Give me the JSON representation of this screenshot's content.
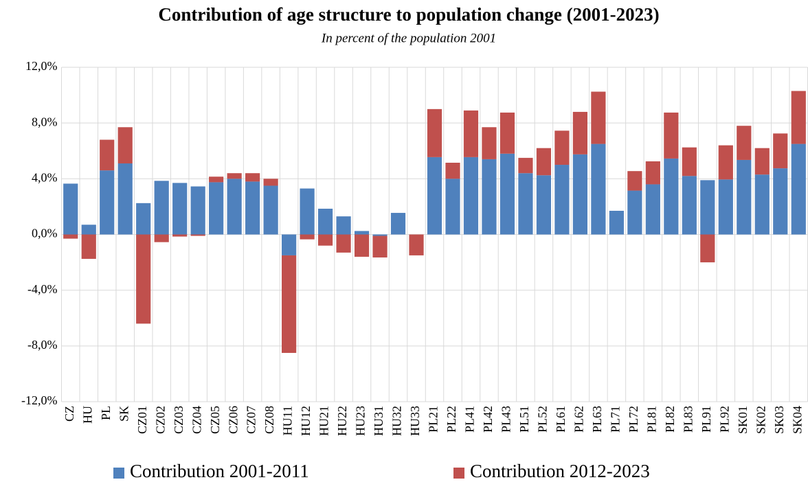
{
  "chart_data": {
    "type": "stacked-bar",
    "title": "Contribution of age structure to population change (2001-2023)",
    "subtitle": "In percent of the population 2001",
    "categories": [
      "CZ",
      "HU",
      "PL",
      "SK",
      "CZ01",
      "CZ02",
      "CZ03",
      "CZ04",
      "CZ05",
      "CZ06",
      "CZ07",
      "CZ08",
      "HU11",
      "HU12",
      "HU21",
      "HU22",
      "HU23",
      "HU31",
      "HU32",
      "HU33",
      "PL21",
      "PL22",
      "PL41",
      "PL42",
      "PL43",
      "PL51",
      "PL52",
      "PL61",
      "PL62",
      "PL63",
      "PL71",
      "PL72",
      "PL81",
      "PL82",
      "PL83",
      "PL91",
      "PL92",
      "SK01",
      "SK02",
      "SK03",
      "SK04"
    ],
    "series": [
      {
        "name": "Contribution 2001-2011",
        "color": "#4f81bd",
        "values": [
          3.65,
          0.7,
          4.6,
          5.1,
          2.25,
          3.85,
          3.7,
          3.45,
          3.75,
          4.0,
          3.8,
          3.5,
          -1.5,
          3.3,
          1.85,
          1.3,
          0.25,
          -0.1,
          1.55,
          0,
          5.55,
          4.0,
          5.55,
          5.4,
          5.8,
          4.4,
          4.25,
          5.0,
          5.75,
          6.5,
          1.7,
          3.15,
          3.6,
          5.45,
          4.2,
          3.9,
          3.95,
          5.35,
          4.3,
          4.75,
          6.5
        ]
      },
      {
        "name": "Contribution 2012-2023",
        "color": "#c0504d",
        "values": [
          -0.3,
          -1.75,
          2.2,
          2.6,
          -6.4,
          -0.55,
          -0.15,
          -0.1,
          0.4,
          0.4,
          0.6,
          0.5,
          -7.0,
          -0.35,
          -0.8,
          -1.3,
          -1.6,
          -1.55,
          0,
          -1.5,
          3.45,
          1.15,
          3.35,
          2.3,
          2.95,
          1.1,
          1.95,
          2.45,
          3.05,
          3.75,
          0,
          1.4,
          1.65,
          3.3,
          2.05,
          -2.0,
          2.45,
          2.45,
          1.9,
          2.5,
          3.8
        ]
      }
    ],
    "ylim": [
      -12,
      12
    ],
    "yticks": [
      {
        "value": -12,
        "label": "-12,0%"
      },
      {
        "value": -8,
        "label": "-8,0%"
      },
      {
        "value": -4,
        "label": "-4,0%"
      },
      {
        "value": 0,
        "label": "0,0%"
      },
      {
        "value": 4,
        "label": "4,0%"
      },
      {
        "value": 8,
        "label": "8,0%"
      },
      {
        "value": 12,
        "label": "12,0%"
      }
    ],
    "grid": true,
    "legend": "bottom"
  }
}
